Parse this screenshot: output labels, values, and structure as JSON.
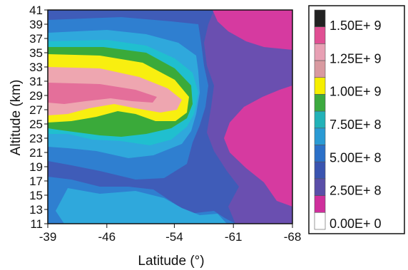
{
  "chart_data": {
    "type": "heatmap",
    "xlabel": "Latitude (°)",
    "ylabel": "Altitude (km)",
    "x_ticks": [
      "-39",
      "-46",
      "-54",
      "-61",
      "-68"
    ],
    "y_ticks": [
      "11",
      "13",
      "15",
      "17",
      "19",
      "21",
      "23",
      "25",
      "27",
      "29",
      "31",
      "33",
      "35",
      "37",
      "39",
      "41"
    ],
    "xlim": [
      -39,
      -68
    ],
    "ylim": [
      11,
      41
    ],
    "x": [
      -39,
      -46,
      -54,
      -61,
      -68
    ],
    "y": [
      11,
      13,
      15,
      17,
      19,
      21,
      23,
      25,
      27,
      29,
      31,
      33,
      35,
      37,
      39,
      41
    ],
    "z_levels": [
      0,
      250000000.0,
      500000000.0,
      750000000.0,
      1000000000.0,
      1250000000.0,
      1500000000.0
    ],
    "colorbar": {
      "labels": [
        "1.50E+ 9",
        "1.25E+ 9",
        "1.00E+ 9",
        "7.50E+ 8",
        "5.00E+ 8",
        "2.50E+ 8",
        "0.00E+ 0"
      ],
      "colors": [
        "#222222",
        "#e04f93",
        "#e8a0b4",
        "#d99aa0",
        "#f6ef00",
        "#3caa3f",
        "#22b2b8",
        "#2a9ad4",
        "#2b70c8",
        "#3a54b0",
        "#5a4ea8",
        "#cf2f9c",
        "#ffffff"
      ]
    },
    "legend_position": "right",
    "grid": false
  },
  "colors": {
    "magenta": "#d63aa0",
    "violet": "#6a4fb0",
    "navy": "#3f5cb8",
    "blue": "#2f7fd0",
    "light_blue": "#2fa8dc",
    "cyan": "#20bfcf",
    "green": "#3aaa3a",
    "yellow": "#f8ef10",
    "light_pink": "#eea6b0",
    "pink": "#e46f9a"
  }
}
